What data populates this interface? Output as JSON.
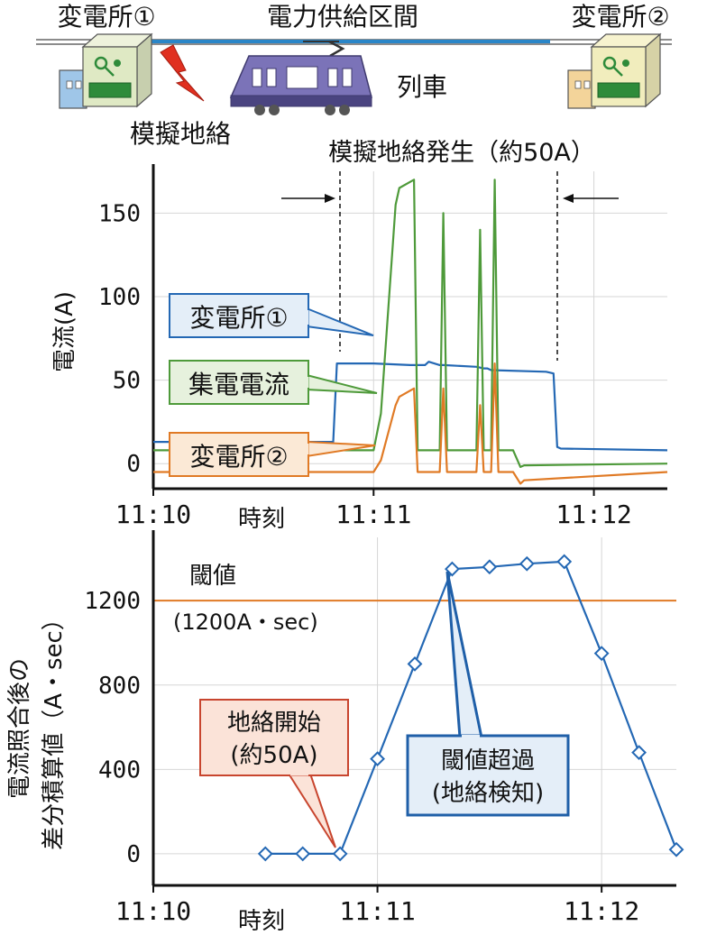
{
  "diagram": {
    "substation1_label": "変電所①",
    "section_label": "電力供給区間",
    "substation2_label": "変電所②",
    "train_label": "列車",
    "fault_label": "模擬地絡",
    "colors": {
      "wire": "#2a86c8",
      "train": "#7b73b8",
      "building": "#dfe9c4",
      "bolt": "#e03020"
    }
  },
  "chart_data": [
    {
      "type": "line",
      "annotation": "模擬地絡発生（約50A）",
      "xlabel": "時刻",
      "ylabel": "電流(A)",
      "x_ticks": [
        "11:10",
        "11:11",
        "11:12"
      ],
      "y_ticks": [
        0,
        50,
        100,
        150
      ],
      "xlim": [
        "11:10:00",
        "11:12:20"
      ],
      "ylim": [
        -15,
        175
      ],
      "grid": true,
      "series": [
        {
          "name": "変電所①",
          "color": "#2468b4",
          "x": [
            "11:10:00",
            "11:10:49",
            "11:10:50",
            "11:11:00",
            "11:11:10",
            "11:11:14",
            "11:11:15",
            "11:11:18",
            "11:11:19",
            "11:11:28",
            "11:11:30",
            "11:11:31",
            "11:11:32",
            "11:11:47",
            "11:11:49",
            "11:11:50",
            "11:11:51",
            "11:12:20"
          ],
          "values": [
            13,
            13,
            60,
            60,
            59,
            59,
            61,
            59,
            59,
            58,
            57,
            57,
            56,
            55,
            54,
            10,
            9,
            8
          ]
        },
        {
          "name": "集電電流",
          "color": "#4e9a3a",
          "x": [
            "11:10:00",
            "11:11:00",
            "11:11:02",
            "11:11:06",
            "11:11:07",
            "11:11:11",
            "11:11:12",
            "11:11:18",
            "11:11:19",
            "11:11:20",
            "11:11:28",
            "11:11:29",
            "11:11:30",
            "11:11:32",
            "11:11:33",
            "11:11:34",
            "11:11:38",
            "11:11:40",
            "11:11:41",
            "11:12:20"
          ],
          "values": [
            8,
            8,
            30,
            155,
            165,
            170,
            8,
            8,
            150,
            8,
            8,
            140,
            8,
            8,
            170,
            8,
            8,
            -2,
            -1,
            0
          ]
        },
        {
          "name": "変電所②",
          "color": "#e07a25",
          "x": [
            "11:10:00",
            "11:11:00",
            "11:11:02",
            "11:11:06",
            "11:11:07",
            "11:11:11",
            "11:11:12",
            "11:11:18",
            "11:11:19",
            "11:11:20",
            "11:11:28",
            "11:11:29",
            "11:11:30",
            "11:11:32",
            "11:11:33",
            "11:11:34",
            "11:11:38",
            "11:11:40",
            "11:11:41",
            "11:12:20"
          ],
          "values": [
            -5,
            -5,
            2,
            35,
            40,
            45,
            -5,
            -5,
            45,
            -5,
            -5,
            35,
            -5,
            -5,
            60,
            -5,
            -5,
            -12,
            -10,
            -5
          ]
        }
      ]
    },
    {
      "type": "line",
      "threshold_label": "閾値",
      "threshold_value_label": "(1200A・sec)",
      "threshold": 1200,
      "xlabel": "時刻",
      "ylabel": "電流照合後の差分積算値（A・sec）",
      "x_ticks": [
        "11:10",
        "11:11",
        "11:12"
      ],
      "y_ticks": [
        0,
        400,
        800,
        1200
      ],
      "xlim": [
        "11:10:00",
        "11:12:20"
      ],
      "ylim": [
        -150,
        1500
      ],
      "grid": true,
      "series": [
        {
          "name": "",
          "color": "#2468b4",
          "marker": "diamond",
          "x": [
            "11:10:30",
            "11:10:40",
            "11:10:50",
            "11:11:00",
            "11:11:10",
            "11:11:20",
            "11:11:30",
            "11:11:40",
            "11:11:50",
            "11:12:00",
            "11:12:10",
            "11:12:20"
          ],
          "values": [
            0,
            0,
            0,
            450,
            900,
            1350,
            1360,
            1375,
            1385,
            950,
            480,
            20
          ]
        }
      ],
      "callouts": {
        "start": {
          "line1": "地絡開始",
          "line2": "(約50A)"
        },
        "exceed": {
          "line1": "閾値超過",
          "line2": "(地絡検知)"
        }
      }
    }
  ]
}
